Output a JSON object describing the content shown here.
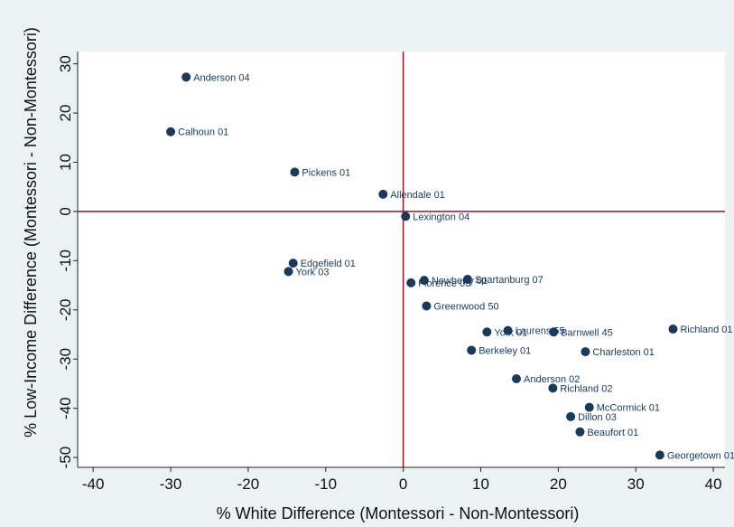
{
  "chart_data": {
    "type": "scatter",
    "title": "",
    "xlabel": "% White Difference (Montessori - Non-Montessori)",
    "ylabel": "% Low-Income Difference (Montessori - Non-Montessori)",
    "xlim": [
      -42,
      41.5
    ],
    "ylim": [
      -52,
      32.5
    ],
    "xticks": [
      -40,
      -30,
      -20,
      -10,
      0,
      10,
      20,
      30,
      40
    ],
    "yticks": [
      30,
      20,
      10,
      0,
      -10,
      -20,
      -30,
      -40,
      -50
    ],
    "reference_lines": {
      "x": 0,
      "y": 0
    },
    "grid": false,
    "legend": "none",
    "colors": {
      "plot_background": "#ffffff",
      "outer_background": "#eaf2f3",
      "marker": "#1a3a5c",
      "reference_line": "#a01226",
      "label": "#1a3a5c"
    },
    "points": [
      {
        "label": "Anderson 04",
        "x": -28,
        "y": 27.3
      },
      {
        "label": "Calhoun 01",
        "x": -30,
        "y": 16.2
      },
      {
        "label": "Pickens 01",
        "x": -14,
        "y": 8
      },
      {
        "label": "Allendale 01",
        "x": -2.6,
        "y": 3.5
      },
      {
        "label": "Lexington 04",
        "x": 0.3,
        "y": -1
      },
      {
        "label": "Edgefield 01",
        "x": -14.2,
        "y": -10.5
      },
      {
        "label": "York 03",
        "x": -14.8,
        "y": -12.2
      },
      {
        "label": "Newberry 01",
        "x": 2.7,
        "y": -14
      },
      {
        "label": "Florence 03",
        "x": 1,
        "y": -14.5
      },
      {
        "label": "Spartanburg 07",
        "x": 8.3,
        "y": -13.8
      },
      {
        "label": "Greenwood 50",
        "x": 3,
        "y": -19.2
      },
      {
        "label": "York 01",
        "x": 10.8,
        "y": -24.5
      },
      {
        "label": "Laurens 55",
        "x": 13.5,
        "y": -24.2
      },
      {
        "label": "Barnwell 45",
        "x": 19.4,
        "y": -24.5
      },
      {
        "label": "Richland 01",
        "x": 34.8,
        "y": -23.9
      },
      {
        "label": "Berkeley 01",
        "x": 8.8,
        "y": -28.2
      },
      {
        "label": "Charleston 01",
        "x": 23.5,
        "y": -28.5
      },
      {
        "label": "Anderson 02",
        "x": 14.6,
        "y": -34
      },
      {
        "label": "Richland 02",
        "x": 19.3,
        "y": -35.9
      },
      {
        "label": "McCormick 01",
        "x": 24,
        "y": -39.8
      },
      {
        "label": "Dillon 03",
        "x": 21.6,
        "y": -41.7
      },
      {
        "label": "Beaufort 01",
        "x": 22.8,
        "y": -44.8
      },
      {
        "label": "Georgetown 01",
        "x": 33.1,
        "y": -49.5
      }
    ]
  }
}
